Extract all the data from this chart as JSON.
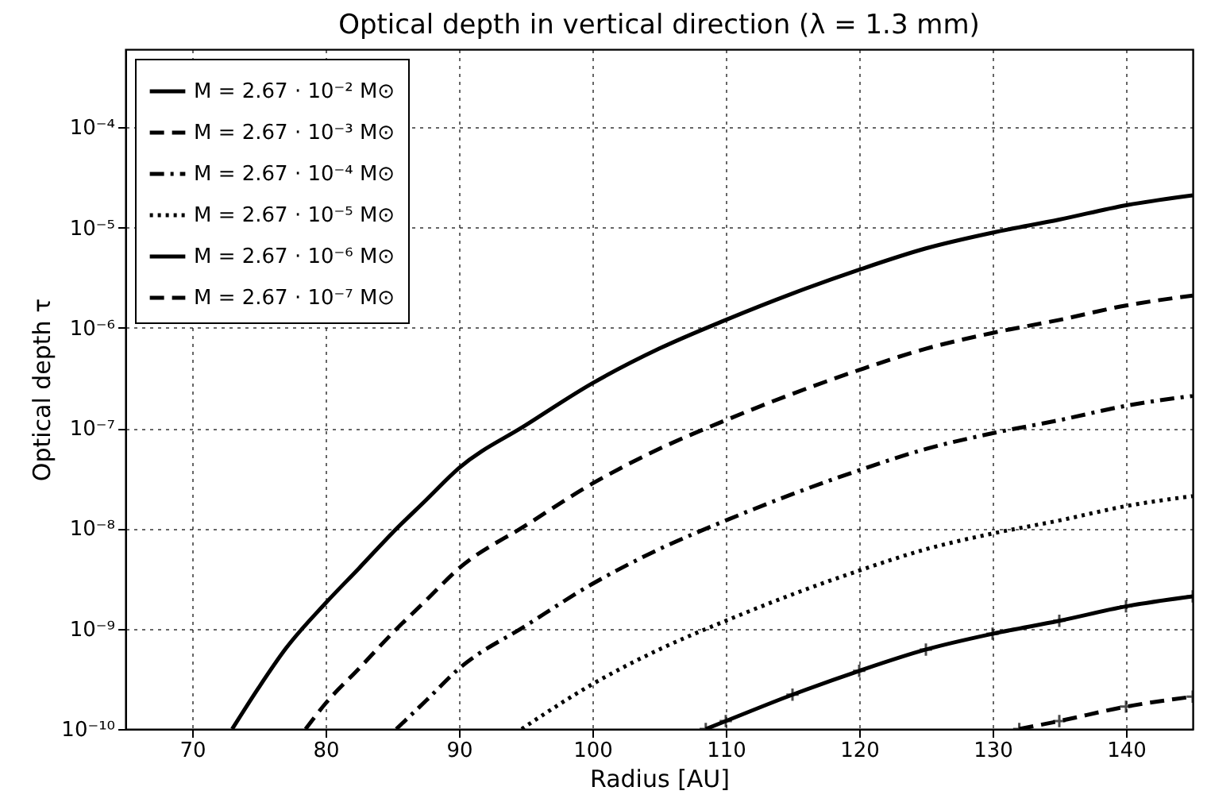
{
  "chart_data": {
    "type": "line",
    "title": "Optical depth in vertical direction (λ = 1.3 mm)",
    "xlabel": "Radius [AU]",
    "ylabel": "Optical depth τ",
    "xlim": [
      65,
      145
    ],
    "xticks": [
      70,
      80,
      90,
      100,
      110,
      120,
      130,
      140
    ],
    "ylim": [
      1e-10,
      0.0006
    ],
    "log": "y",
    "yticks": [
      {
        "value": 1e-10,
        "label": "10⁻¹⁰"
      },
      {
        "value": 1e-09,
        "label": "10⁻⁹"
      },
      {
        "value": 1e-08,
        "label": "10⁻⁸"
      },
      {
        "value": 1e-07,
        "label": "10⁻⁷"
      },
      {
        "value": 1e-06,
        "label": "10⁻⁶"
      },
      {
        "value": 1e-05,
        "label": "10⁻⁵"
      },
      {
        "value": 0.0001,
        "label": "10⁻⁴"
      }
    ],
    "grid": true,
    "legend": "top left",
    "series": [
      {
        "name": "M = 2.67 · 10⁻² M⊙",
        "color": "#000000",
        "line_style": "solid",
        "x": [
          73,
          75,
          77,
          80,
          82.5,
          85,
          87.5,
          90,
          95,
          100,
          105,
          110,
          115,
          120,
          125,
          130,
          135,
          140,
          145
        ],
        "values": [
          1e-10,
          2.6e-10,
          6.3e-10,
          1.8e-09,
          4e-09,
          9e-09,
          1.9e-08,
          4e-08,
          1.07e-07,
          2.8e-07,
          6.2e-07,
          1.2e-06,
          2.2e-06,
          3.8e-06,
          6.2e-06,
          8.9e-06,
          1.2e-05,
          1.67e-05,
          2.1e-05
        ]
      },
      {
        "name": "M = 2.67 · 10⁻³ M⊙",
        "color": "#000000",
        "line_style": "dashed",
        "x": [
          78.5,
          80,
          82.5,
          85,
          87.5,
          90,
          95,
          100,
          105,
          110,
          115,
          120,
          125,
          130,
          135,
          140,
          145
        ],
        "values": [
          1e-10,
          1.8e-10,
          4e-10,
          9e-10,
          1.9e-09,
          4e-09,
          1.07e-08,
          2.8e-08,
          6.2e-08,
          1.2e-07,
          2.2e-07,
          3.8e-07,
          6.2e-07,
          8.9e-07,
          1.2e-06,
          1.67e-06,
          2.1e-06
        ]
      },
      {
        "name": "M = 2.67 · 10⁻⁴ M⊙",
        "color": "#000000",
        "line_style": "dashdot",
        "x": [
          85.3,
          87.5,
          90,
          95,
          100,
          105,
          110,
          115,
          120,
          125,
          130,
          135,
          140,
          145
        ],
        "values": [
          1e-10,
          1.9e-10,
          4e-10,
          1.07e-09,
          2.8e-09,
          6.2e-09,
          1.2e-08,
          2.2e-08,
          3.8e-08,
          6.2e-08,
          8.9e-08,
          1.2e-07,
          1.67e-07,
          2.1e-07
        ]
      },
      {
        "name": "M = 2.67 · 10⁻⁵ M⊙",
        "color": "#000000",
        "line_style": "dotted",
        "x": [
          94.7,
          100,
          105,
          110,
          115,
          120,
          125,
          130,
          135,
          140,
          145
        ],
        "values": [
          1e-10,
          2.8e-10,
          6.2e-10,
          1.2e-09,
          2.2e-09,
          3.8e-09,
          6.2e-09,
          8.9e-09,
          1.2e-08,
          1.67e-08,
          2.1e-08
        ]
      },
      {
        "name": "M = 2.67 · 10⁻⁶ M⊙",
        "color": "#000000",
        "line_style": "solid",
        "marker": "cross",
        "x": [
          108.5,
          110,
          115,
          120,
          125,
          130,
          135,
          140,
          145
        ],
        "values": [
          1e-10,
          1.2e-10,
          2.2e-10,
          3.8e-10,
          6.2e-10,
          8.9e-10,
          1.2e-09,
          1.67e-09,
          2.1e-09
        ]
      },
      {
        "name": "M = 2.67 · 10⁻⁷ M⊙",
        "color": "#000000",
        "line_style": "dashed",
        "marker": "cross",
        "x": [
          132,
          135,
          140,
          145
        ],
        "values": [
          1e-10,
          1.2e-10,
          1.67e-10,
          2.1e-10
        ]
      }
    ]
  }
}
